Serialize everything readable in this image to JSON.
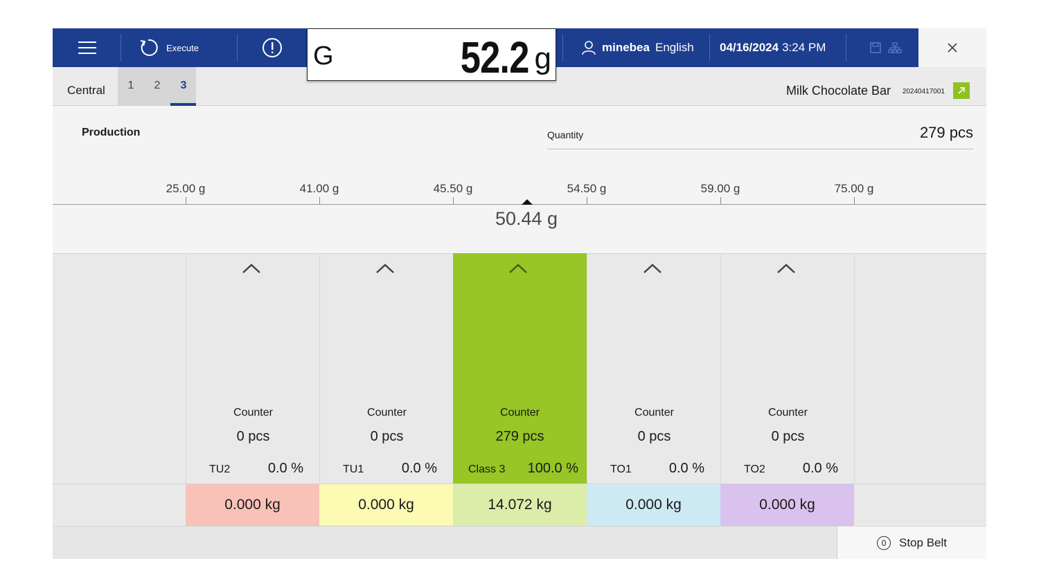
{
  "header": {
    "menu_icon": "hamburger-icon",
    "execute_label": "Execute",
    "execute_icon": "refresh-icon",
    "info_icon": "exclamation-circle-icon",
    "weight": {
      "mode": "G",
      "value": "52.2",
      "unit": "g"
    },
    "user_icon": "user-icon",
    "user_name": "minebea",
    "language": "English",
    "date": "04/16/2024",
    "time": "3:24 PM",
    "save_icon": "save-icon",
    "network_icon": "network-icon",
    "close_icon": "close-icon",
    "brand_color": "#1d3e8f"
  },
  "tabs": {
    "central_label": "Central",
    "items": [
      "1",
      "2",
      "3"
    ],
    "active": "3"
  },
  "product": {
    "name": "Milk Chocolate Bar",
    "code": "20240417001",
    "link_icon": "external-link-icon",
    "link_color": "#8ec21f"
  },
  "production": {
    "title": "Production",
    "quantity_label": "Quantity",
    "quantity_value": "279 pcs"
  },
  "scale": {
    "limits": [
      "25.00 g",
      "41.00 g",
      "45.50 g",
      "54.50 g",
      "59.00 g",
      "75.00 g"
    ],
    "mean": "50.44 g"
  },
  "classes": [
    {
      "name": "TU2",
      "counter_label": "Counter",
      "count": "0 pcs",
      "percent": "0.0 %",
      "weight": "0.000 kg",
      "highlight": false,
      "weight_color": "#f9c2b8"
    },
    {
      "name": "TU1",
      "counter_label": "Counter",
      "count": "0 pcs",
      "percent": "0.0 %",
      "weight": "0.000 kg",
      "highlight": false,
      "weight_color": "#fcfab3"
    },
    {
      "name": "Class 3",
      "counter_label": "Counter",
      "count": "279 pcs",
      "percent": "100.0 %",
      "weight": "14.072 kg",
      "highlight": true,
      "highlight_color": "#97c626",
      "weight_color": "#dcedaa"
    },
    {
      "name": "TO1",
      "counter_label": "Counter",
      "count": "0 pcs",
      "percent": "0.0 %",
      "weight": "0.000 kg",
      "highlight": false,
      "weight_color": "#cdeaf3"
    },
    {
      "name": "TO2",
      "counter_label": "Counter",
      "count": "0 pcs",
      "percent": "0.0 %",
      "weight": "0.000 kg",
      "highlight": false,
      "weight_color": "#d9c2ee"
    }
  ],
  "footer": {
    "stop_belt_label": "Stop Belt",
    "stop_belt_icon": "zero-circle-icon"
  }
}
